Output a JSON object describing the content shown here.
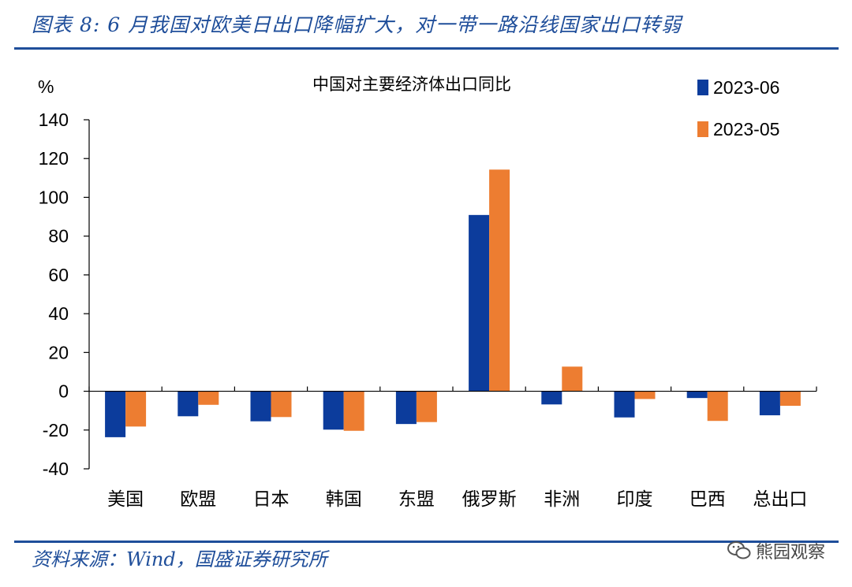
{
  "figure": {
    "title": "图表 8:  6 月我国对欧美日出口降幅扩大，对一带一路沿线国家出口转弱",
    "source": "资料来源：Wind，国盛证券研究所",
    "watermark": "熊园观察",
    "watermark_icon": "wechat-icon"
  },
  "chart_data": {
    "type": "bar",
    "title": "中国对主要经济体出口同比",
    "ylabel": "%",
    "xlabel": "",
    "categories": [
      "美国",
      "欧盟",
      "日本",
      "韩国",
      "东盟",
      "俄罗斯",
      "非洲",
      "印度",
      "巴西",
      "总出口"
    ],
    "series": [
      {
        "name": "2023-06",
        "color": "#0c3c9c",
        "values": [
          -23.7,
          -12.9,
          -15.5,
          -19.8,
          -16.9,
          90.9,
          -6.8,
          -13.5,
          -3.5,
          -12.4
        ]
      },
      {
        "name": "2023-05",
        "color": "#ed7d31",
        "values": [
          -18.2,
          -7.0,
          -13.3,
          -20.4,
          -15.9,
          114.3,
          12.7,
          -4.0,
          -15.3,
          -7.5
        ]
      }
    ],
    "ylim": [
      -40,
      140
    ],
    "yticks": [
      "140",
      "120",
      "100",
      "80",
      "60",
      "40",
      "20",
      "0",
      "-20",
      "-40"
    ],
    "legend": "top-right",
    "grid": false
  }
}
